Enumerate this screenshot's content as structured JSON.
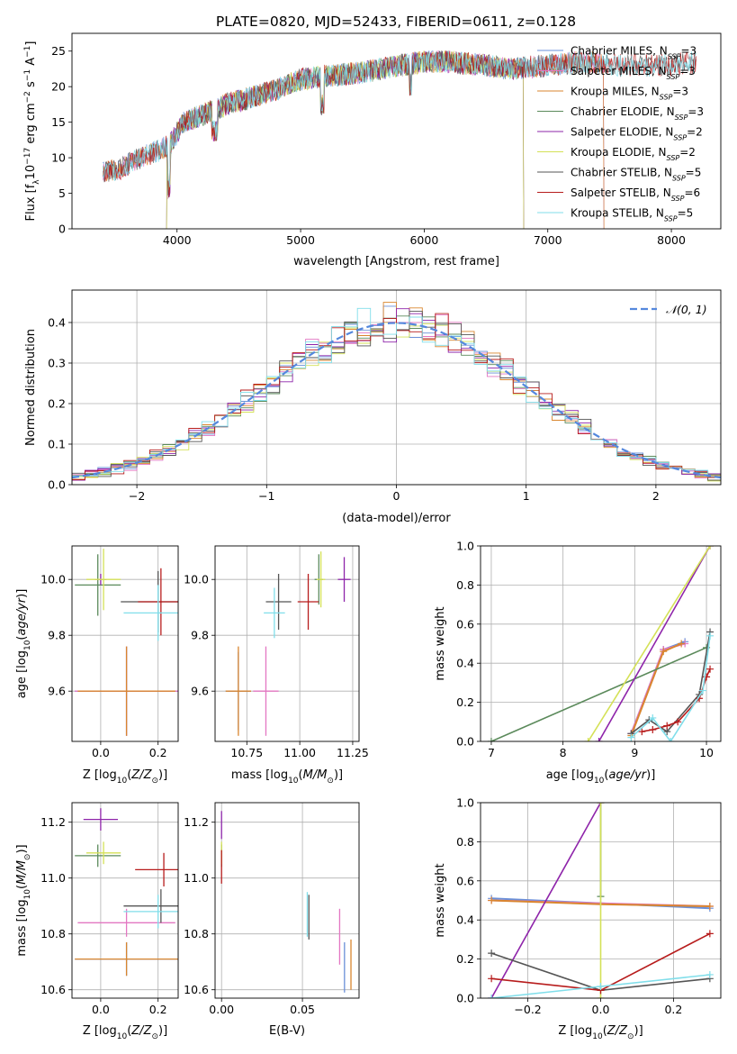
{
  "figure_title": "PLATE=0820, MJD=52433, FIBERID=0611, z=0.128",
  "colors": {
    "grid": "#b0b0b0",
    "normal_curve": "#5588dd",
    "chabrier_miles": "#6a8fd8",
    "salpeter_miles": "#e377c2",
    "kroupa_miles": "#d9862f",
    "chabrier_elodie": "#5b8a5b",
    "salpeter_elodie": "#8e24aa",
    "kroupa_elodie": "#d4e157",
    "chabrier_stelib": "#555555",
    "salpeter_stelib": "#b71c1c",
    "kroupa_stelib": "#80deea"
  },
  "chart_data": [
    {
      "id": "spectrum",
      "type": "line",
      "title": "PLATE=0820, MJD=52433, FIBERID=0611, z=0.128",
      "xlabel": "wavelength [Angstrom, rest frame]",
      "ylabel": "Flux [f_λ 10^-17 erg cm^-2 s^-1 A^-1]",
      "xlim": [
        3150,
        8400
      ],
      "ylim": [
        0,
        27.5
      ],
      "xticks": [
        4000,
        5000,
        6000,
        7000,
        8000
      ],
      "yticks": [
        0,
        5,
        10,
        15,
        20,
        25
      ],
      "grid": false,
      "legend_position": "top-right",
      "series": [
        {
          "name": "Chabrier MILES, N_SSP=3",
          "color_key": "chabrier_miles",
          "range": [
            3400,
            7450
          ]
        },
        {
          "name": "Salpeter MILES, N_SSP=3",
          "color_key": "salpeter_miles",
          "range": [
            3400,
            7450
          ]
        },
        {
          "name": "Kroupa MILES, N_SSP=3",
          "color_key": "kroupa_miles",
          "range": [
            3400,
            7450
          ]
        },
        {
          "name": "Chabrier ELODIE, N_SSP=3",
          "color_key": "chabrier_elodie",
          "range": [
            3920,
            6800
          ]
        },
        {
          "name": "Salpeter ELODIE, N_SSP=2",
          "color_key": "salpeter_elodie",
          "range": [
            3920,
            6800
          ]
        },
        {
          "name": "Kroupa ELODIE, N_SSP=2",
          "color_key": "kroupa_elodie",
          "range": [
            3920,
            6800
          ]
        },
        {
          "name": "Chabrier STELIB, N_SSP=5",
          "color_key": "chabrier_stelib",
          "range": [
            3400,
            8200
          ]
        },
        {
          "name": "Salpeter STELIB, N_SSP=6",
          "color_key": "salpeter_stelib",
          "range": [
            3400,
            8200
          ]
        },
        {
          "name": "Kroupa STELIB, N_SSP=5",
          "color_key": "kroupa_stelib",
          "range": [
            3400,
            8200
          ]
        }
      ],
      "continuum": [
        [
          3400,
          8
        ],
        [
          3550,
          8.5
        ],
        [
          3700,
          10
        ],
        [
          3850,
          11
        ],
        [
          3950,
          12
        ],
        [
          4050,
          15
        ],
        [
          4200,
          16
        ],
        [
          4400,
          17.5
        ],
        [
          4600,
          18.5
        ],
        [
          4800,
          19.5
        ],
        [
          5000,
          21
        ],
        [
          5200,
          21.5
        ],
        [
          5500,
          22
        ],
        [
          5800,
          23
        ],
        [
          6000,
          23.5
        ],
        [
          6200,
          23.5
        ],
        [
          6500,
          23
        ],
        [
          6700,
          22.5
        ],
        [
          7000,
          23
        ],
        [
          7300,
          23.5
        ],
        [
          7600,
          23
        ],
        [
          8000,
          23
        ],
        [
          8200,
          23.5
        ]
      ]
    },
    {
      "id": "residuals",
      "type": "histogram",
      "xlabel": "(data-model)/error",
      "ylabel": "Normed distribution",
      "xlim": [
        -2.5,
        2.5
      ],
      "ylim": [
        0,
        0.48
      ],
      "xticks": [
        -2,
        -1,
        0,
        1,
        2
      ],
      "yticks": [
        0.0,
        0.1,
        0.2,
        0.3,
        0.4
      ],
      "grid": true,
      "legend": "𝒩(0, 1)",
      "legend_position": "top-right",
      "bin_width": 0.1
    },
    {
      "id": "age_vs_Z",
      "type": "errorbar",
      "xlabel": "Z [log10(Z/Z⊙)]",
      "ylabel": "age  [log10(age/yr)]",
      "xlim": [
        -0.1,
        0.27
      ],
      "ylim": [
        9.42,
        10.12
      ],
      "xticks": [
        0.0,
        0.2
      ],
      "yticks": [
        9.6,
        9.8,
        10.0
      ],
      "grid": true,
      "points": [
        {
          "key": "chabrier_miles",
          "x": 0.09,
          "y": 9.6,
          "xerr": 0.18,
          "yerr": 0.16
        },
        {
          "key": "salpeter_miles",
          "x": 0.09,
          "y": 9.6,
          "xerr": 0.18,
          "yerr": 0.16
        },
        {
          "key": "kroupa_miles",
          "x": 0.09,
          "y": 9.6,
          "xerr": 0.17,
          "yerr": 0.16
        },
        {
          "key": "chabrier_elodie",
          "x": -0.01,
          "y": 9.98,
          "xerr": 0.08,
          "yerr": 0.11
        },
        {
          "key": "salpeter_elodie",
          "x": 0.0,
          "y": 10.0,
          "xerr": 0.02,
          "yerr": 0.02
        },
        {
          "key": "kroupa_elodie",
          "x": 0.01,
          "y": 10.0,
          "xerr": 0.06,
          "yerr": 0.11
        },
        {
          "key": "chabrier_stelib",
          "x": 0.2,
          "y": 9.92,
          "xerr": 0.13,
          "yerr": 0.11
        },
        {
          "key": "salpeter_stelib",
          "x": 0.21,
          "y": 9.92,
          "xerr": 0.08,
          "yerr": 0.12
        },
        {
          "key": "kroupa_stelib",
          "x": 0.2,
          "y": 9.88,
          "xerr": 0.12,
          "yerr": 0.1
        }
      ]
    },
    {
      "id": "age_vs_mass",
      "type": "errorbar",
      "xlabel": "mass [log10(M/M⊙)]",
      "ylabel": "",
      "xlim": [
        10.6,
        11.28
      ],
      "ylim": [
        9.42,
        10.12
      ],
      "xticks": [
        10.75,
        11.0,
        11.25
      ],
      "yticks": [
        9.6,
        9.8,
        10.0
      ],
      "grid": true,
      "points": [
        {
          "key": "chabrier_miles",
          "x": 10.71,
          "y": 9.6,
          "xerr": 0.06,
          "yerr": 0.14
        },
        {
          "key": "salpeter_miles",
          "x": 10.84,
          "y": 9.6,
          "xerr": 0.06,
          "yerr": 0.16
        },
        {
          "key": "kroupa_miles",
          "x": 10.71,
          "y": 9.6,
          "xerr": 0.06,
          "yerr": 0.16
        },
        {
          "key": "chabrier_elodie",
          "x": 11.09,
          "y": 10.0,
          "xerr": 0.02,
          "yerr": 0.09
        },
        {
          "key": "salpeter_elodie",
          "x": 11.21,
          "y": 10.0,
          "xerr": 0.03,
          "yerr": 0.08
        },
        {
          "key": "kroupa_elodie",
          "x": 11.1,
          "y": 10.0,
          "xerr": 0.02,
          "yerr": 0.1
        },
        {
          "key": "chabrier_stelib",
          "x": 10.9,
          "y": 9.92,
          "xerr": 0.06,
          "yerr": 0.1
        },
        {
          "key": "salpeter_stelib",
          "x": 11.04,
          "y": 9.92,
          "xerr": 0.05,
          "yerr": 0.1
        },
        {
          "key": "kroupa_stelib",
          "x": 10.88,
          "y": 9.88,
          "xerr": 0.05,
          "yerr": 0.09
        }
      ]
    },
    {
      "id": "weight_vs_age",
      "type": "line",
      "xlabel": "age  [log10(age/yr)]",
      "ylabel": "mass weight",
      "xlim": [
        6.85,
        10.2
      ],
      "ylim": [
        0,
        1.0
      ],
      "xticks": [
        7,
        8,
        9,
        10
      ],
      "yticks": [
        0.0,
        0.2,
        0.4,
        0.6,
        0.8,
        1.0
      ],
      "grid": true,
      "series": [
        {
          "key": "chabrier_miles",
          "x": [
            8.95,
            9.4,
            9.7
          ],
          "y": [
            0.04,
            0.47,
            0.51
          ]
        },
        {
          "key": "salpeter_miles",
          "x": [
            8.95,
            9.4,
            9.7
          ],
          "y": [
            0.04,
            0.47,
            0.5
          ]
        },
        {
          "key": "kroupa_miles",
          "x": [
            8.95,
            9.4,
            9.65
          ],
          "y": [
            0.03,
            0.46,
            0.5
          ]
        },
        {
          "key": "chabrier_elodie",
          "x": [
            7.0,
            10.0
          ],
          "y": [
            0.0,
            0.48
          ]
        },
        {
          "key": "salpeter_elodie",
          "x": [
            8.5,
            10.05
          ],
          "y": [
            0.0,
            1.0
          ]
        },
        {
          "key": "kroupa_elodie",
          "x": [
            8.35,
            10.05
          ],
          "y": [
            0.0,
            1.0
          ]
        },
        {
          "key": "chabrier_stelib",
          "x": [
            8.95,
            9.2,
            9.45,
            9.9,
            10.05
          ],
          "y": [
            0.04,
            0.11,
            0.05,
            0.24,
            0.56
          ]
        },
        {
          "key": "salpeter_stelib",
          "x": [
            9.1,
            9.25,
            9.45,
            9.6,
            9.9,
            10.0,
            10.05
          ],
          "y": [
            0.05,
            0.06,
            0.08,
            0.1,
            0.22,
            0.33,
            0.37
          ]
        },
        {
          "key": "kroupa_stelib",
          "x": [
            8.95,
            9.25,
            9.5,
            9.95,
            10.05
          ],
          "y": [
            0.02,
            0.12,
            0.0,
            0.26,
            0.54
          ]
        }
      ]
    },
    {
      "id": "mass_vs_Z",
      "type": "errorbar",
      "xlabel": "Z [log10(Z/Z⊙)]",
      "ylabel": "mass [log10(M/M⊙)]",
      "xlim": [
        -0.1,
        0.27
      ],
      "ylim": [
        10.57,
        11.27
      ],
      "xticks": [
        0.0,
        0.2
      ],
      "yticks": [
        10.6,
        10.8,
        11.0,
        11.2
      ],
      "grid": true,
      "points": [
        {
          "key": "chabrier_miles",
          "x": 0.09,
          "y": 10.71,
          "xerr": 0.18,
          "yerr": 0.06
        },
        {
          "key": "salpeter_miles",
          "x": 0.09,
          "y": 10.84,
          "xerr": 0.17,
          "yerr": 0.05
        },
        {
          "key": "kroupa_miles",
          "x": 0.09,
          "y": 10.71,
          "xerr": 0.18,
          "yerr": 0.06
        },
        {
          "key": "chabrier_elodie",
          "x": -0.01,
          "y": 11.08,
          "xerr": 0.08,
          "yerr": 0.04
        },
        {
          "key": "salpeter_elodie",
          "x": 0.0,
          "y": 11.21,
          "xerr": 0.06,
          "yerr": 0.04
        },
        {
          "key": "kroupa_elodie",
          "x": 0.01,
          "y": 11.09,
          "xerr": 0.06,
          "yerr": 0.04
        },
        {
          "key": "chabrier_stelib",
          "x": 0.21,
          "y": 10.9,
          "xerr": 0.13,
          "yerr": 0.06
        },
        {
          "key": "salpeter_stelib",
          "x": 0.22,
          "y": 11.03,
          "xerr": 0.1,
          "yerr": 0.06
        },
        {
          "key": "kroupa_stelib",
          "x": 0.2,
          "y": 10.88,
          "xerr": 0.12,
          "yerr": 0.06
        }
      ]
    },
    {
      "id": "mass_vs_EBV",
      "type": "errorbar",
      "xlabel": "E(B-V)",
      "ylabel": "",
      "xlim": [
        -0.004,
        0.085
      ],
      "ylim": [
        10.57,
        11.27
      ],
      "xticks": [
        0.0,
        0.05
      ],
      "yticks": [
        10.6,
        10.8,
        11.0,
        11.2
      ],
      "grid": true,
      "points": [
        {
          "key": "chabrier_miles",
          "x": 0.076,
          "y": 10.68,
          "xerr": 0.0,
          "yerr": 0.09
        },
        {
          "key": "salpeter_miles",
          "x": 0.073,
          "y": 10.79,
          "xerr": 0.0,
          "yerr": 0.1
        },
        {
          "key": "kroupa_miles",
          "x": 0.08,
          "y": 10.69,
          "xerr": 0.0,
          "yerr": 0.09
        },
        {
          "key": "chabrier_elodie",
          "x": 0.0,
          "y": 11.08,
          "xerr": 0.0,
          "yerr": 0.04
        },
        {
          "key": "salpeter_elodie",
          "x": 0.0,
          "y": 11.19,
          "xerr": 0.0,
          "yerr": 0.05
        },
        {
          "key": "kroupa_elodie",
          "x": 0.0,
          "y": 11.09,
          "xerr": 0.0,
          "yerr": 0.04
        },
        {
          "key": "chabrier_stelib",
          "x": 0.054,
          "y": 10.86,
          "xerr": 0.0,
          "yerr": 0.08
        },
        {
          "key": "salpeter_stelib",
          "x": 0.0,
          "y": 11.04,
          "xerr": 0.0,
          "yerr": 0.06
        },
        {
          "key": "kroupa_stelib",
          "x": 0.053,
          "y": 10.87,
          "xerr": 0.0,
          "yerr": 0.08
        }
      ]
    },
    {
      "id": "weight_vs_Z",
      "type": "line",
      "xlabel": "Z [log10(Z/Z⊙)]",
      "ylabel": "mass weight",
      "xlim": [
        -0.33,
        0.33
      ],
      "ylim": [
        0,
        1.0
      ],
      "xticks": [
        -0.2,
        0.0,
        0.2
      ],
      "yticks": [
        0.0,
        0.2,
        0.4,
        0.6,
        0.8,
        1.0
      ],
      "grid": true,
      "series": [
        {
          "key": "chabrier_miles",
          "x": [
            -0.3,
            0.3
          ],
          "y": [
            0.51,
            0.46
          ]
        },
        {
          "key": "salpeter_miles",
          "x": [
            -0.3,
            0.3
          ],
          "y": [
            0.5,
            0.47
          ]
        },
        {
          "key": "kroupa_miles",
          "x": [
            -0.3,
            0.0,
            0.3
          ],
          "y": [
            0.5,
            0.48,
            0.47
          ]
        },
        {
          "key": "chabrier_elodie",
          "x": [
            0.0,
            0.0
          ],
          "y": [
            0.52,
            1.0
          ]
        },
        {
          "key": "salpeter_elodie",
          "x": [
            -0.3,
            0.0
          ],
          "y": [
            0.0,
            1.0
          ]
        },
        {
          "key": "kroupa_elodie",
          "x": [
            0.0,
            0.0
          ],
          "y": [
            0.0,
            1.0
          ]
        },
        {
          "key": "chabrier_stelib",
          "x": [
            -0.3,
            0.0,
            0.3
          ],
          "y": [
            0.23,
            0.04,
            0.1
          ]
        },
        {
          "key": "salpeter_stelib",
          "x": [
            -0.3,
            0.0,
            0.3
          ],
          "y": [
            0.1,
            0.04,
            0.33
          ]
        },
        {
          "key": "kroupa_stelib",
          "x": [
            -0.3,
            0.0,
            0.3
          ],
          "y": [
            0.0,
            0.06,
            0.12
          ]
        }
      ]
    }
  ]
}
